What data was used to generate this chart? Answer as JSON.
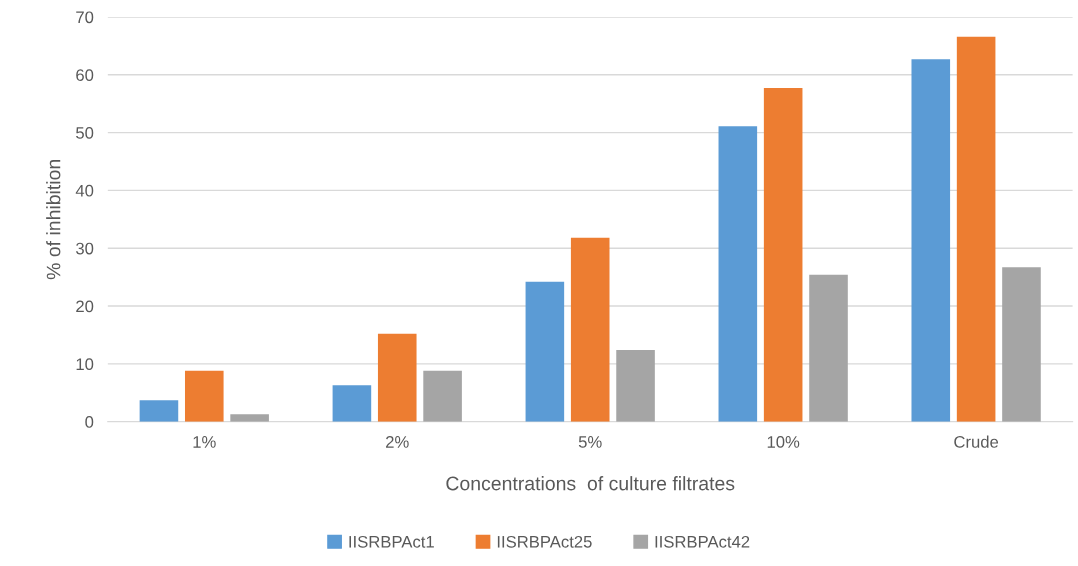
{
  "chart_data": {
    "type": "bar",
    "xlabel": "Concentrations  of culture filtrates",
    "ylabel": "% of inhibition",
    "categories": [
      "1%",
      "2%",
      "5%",
      "10%",
      "Crude"
    ],
    "series": [
      {
        "name": "IISRBPAct1",
        "color": "#5b9bd5",
        "values": [
          3.7,
          6.3,
          24.2,
          51.1,
          62.7
        ]
      },
      {
        "name": "IISRBPAct25",
        "color": "#ed7d31",
        "values": [
          8.8,
          15.2,
          31.8,
          57.7,
          66.6
        ]
      },
      {
        "name": "IISRBPAct42",
        "color": "#a5a5a5",
        "values": [
          1.3,
          8.8,
          12.4,
          25.4,
          26.7
        ]
      }
    ],
    "ylim": [
      0,
      70
    ],
    "yticks": [
      0,
      10,
      20,
      30,
      40,
      50,
      60,
      70
    ],
    "grid": "y",
    "legend": "bottom"
  }
}
